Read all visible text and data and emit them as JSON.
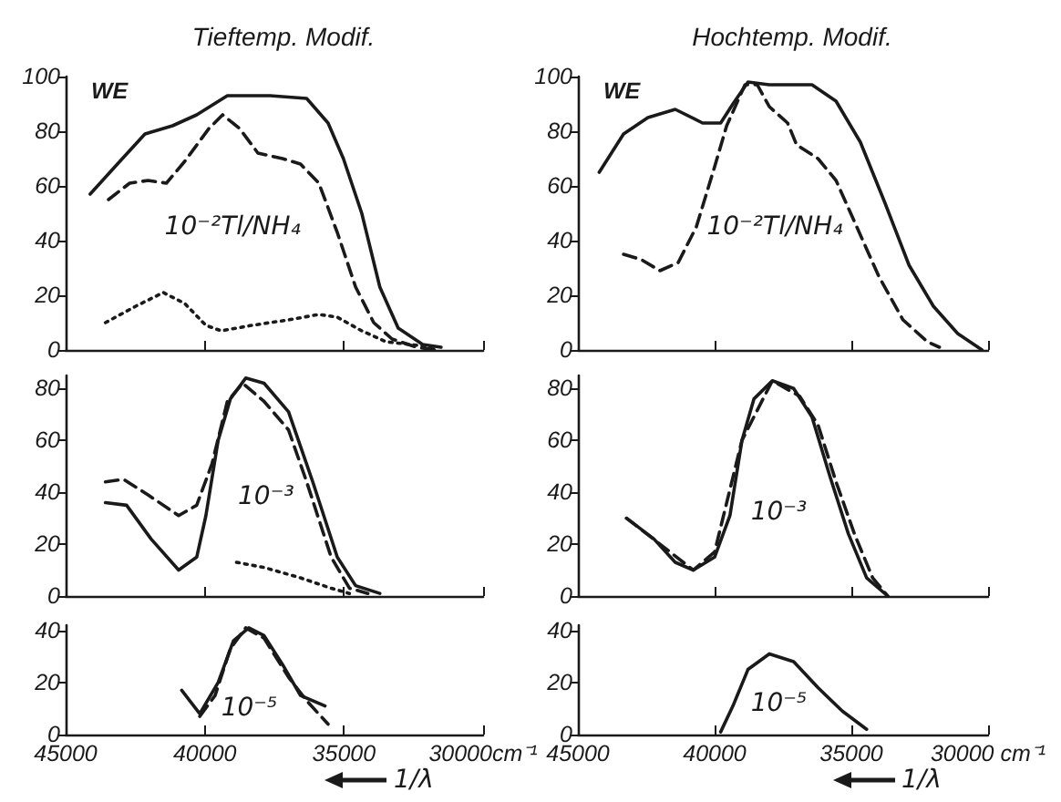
{
  "chart_data": [
    {
      "type": "line",
      "title": "Tieftemp. Modif.",
      "ylabel": "WE",
      "xlim": [
        45000,
        30000
      ],
      "xticks": [
        45000,
        40000,
        35000,
        30000
      ],
      "ylim": [
        0,
        100
      ],
      "yticks": [
        0,
        20,
        40,
        60,
        80,
        100
      ],
      "tick_labels": "y",
      "annotations": [
        "10⁻²Tl/NH₄"
      ],
      "series": [
        {
          "color": "#1a1a1a",
          "line_style": "solid",
          "x": [
            44120,
            43140,
            42150,
            41160,
            40290,
            39190,
            37650,
            36340,
            35570,
            35020,
            34360,
            33710,
            33050,
            32170,
            31510
          ],
          "values": [
            57,
            68,
            79,
            82,
            86,
            93,
            93,
            92,
            83,
            70,
            50,
            23,
            8,
            2,
            1
          ]
        },
        {
          "color": "#1a1a1a",
          "line_style": "dashed",
          "x": [
            43460,
            42700,
            42040,
            41380,
            40720,
            39850,
            39360,
            38750,
            38090,
            37210,
            36560,
            35900,
            35240,
            34580,
            33930,
            33270,
            32390,
            31730
          ],
          "values": [
            55,
            61,
            62,
            61,
            69,
            81,
            86,
            81,
            72,
            70,
            68,
            61,
            43,
            23,
            10,
            4,
            1,
            0
          ]
        },
        {
          "color": "#1a1a1a",
          "line_style": "dotted",
          "x": [
            43570,
            42480,
            41490,
            40720,
            39960,
            39410,
            38310,
            36990,
            35900,
            35240,
            34360,
            33490,
            32610,
            31730
          ],
          "values": [
            10,
            16,
            21,
            17,
            9,
            7,
            9,
            11,
            13,
            12,
            7,
            3,
            2,
            1
          ]
        }
      ]
    },
    {
      "type": "line",
      "title": "Hochtemp. Modif.",
      "ylabel": "WE",
      "xlim": [
        45000,
        30000
      ],
      "xticks": [
        45000,
        40000,
        35000,
        30000
      ],
      "ylim": [
        0,
        100
      ],
      "yticks": [
        0,
        20,
        40,
        60,
        80,
        100
      ],
      "tick_labels": "y",
      "annotations": [
        "10⁻²Tl/NH₄"
      ],
      "series": [
        {
          "color": "#1a1a1a",
          "line_style": "solid",
          "x": [
            44220,
            43330,
            42440,
            41440,
            40440,
            39780,
            39330,
            38780,
            38000,
            36440,
            35560,
            34670,
            33780,
            32890,
            32000,
            31110,
            30220
          ],
          "values": [
            65,
            79,
            85,
            88,
            83,
            83,
            90,
            98,
            97,
            97,
            91,
            76,
            54,
            31,
            16,
            6,
            0
          ]
        },
        {
          "color": "#1a1a1a",
          "line_style": "dashed",
          "x": [
            43330,
            42670,
            42000,
            41330,
            40670,
            40000,
            39560,
            38890,
            38440,
            38000,
            37330,
            37000,
            36220,
            35560,
            34890,
            34000,
            33110,
            32220,
            31780
          ],
          "values": [
            35,
            33,
            29,
            32,
            45,
            67,
            82,
            97,
            97,
            89,
            83,
            75,
            70,
            62,
            47,
            27,
            11,
            3,
            1
          ]
        }
      ]
    },
    {
      "type": "line",
      "xlim": [
        45000,
        30000
      ],
      "xticks": [
        45000,
        40000,
        35000,
        30000
      ],
      "ylim": [
        0,
        85
      ],
      "yticks": [
        0,
        20,
        40,
        60,
        80
      ],
      "tick_labels": "y",
      "annotations": [
        "10⁻³"
      ],
      "series": [
        {
          "color": "#1a1a1a",
          "line_style": "solid",
          "x": [
            43570,
            42810,
            41930,
            40940,
            40290,
            39960,
            39520,
            39080,
            38530,
            37870,
            36990,
            36120,
            35240,
            34580,
            33710
          ],
          "values": [
            36,
            35,
            22,
            10,
            15,
            31,
            60,
            76,
            84,
            82,
            71,
            44,
            15,
            4,
            1
          ]
        },
        {
          "color": "#1a1a1a",
          "line_style": "dashed",
          "x": [
            43570,
            42920,
            42040,
            40940,
            40290,
            39740,
            39190,
            38640,
            37870,
            36990,
            36340,
            35460,
            34800,
            34140
          ],
          "values": [
            44,
            45,
            39,
            31,
            35,
            51,
            75,
            82,
            75,
            64,
            44,
            15,
            3,
            1
          ]
        },
        {
          "color": "#1a1a1a",
          "line_style": "dotted",
          "x": [
            38860,
            37870,
            36560,
            35460,
            34800
          ],
          "values": [
            13,
            11,
            7,
            3,
            1
          ]
        }
      ]
    },
    {
      "type": "line",
      "xlim": [
        45000,
        30000
      ],
      "xticks": [
        45000,
        40000,
        35000,
        30000
      ],
      "ylim": [
        0,
        85
      ],
      "yticks": [
        0,
        20,
        40,
        60,
        80
      ],
      "tick_labels": "y",
      "annotations": [
        "10⁻³"
      ],
      "series": [
        {
          "color": "#1a1a1a",
          "line_style": "solid",
          "x": [
            43220,
            42220,
            41440,
            40780,
            40000,
            39440,
            39000,
            38560,
            37890,
            37110,
            36440,
            35780,
            35110,
            34440,
            33670
          ],
          "values": [
            30,
            22,
            13,
            10,
            15,
            31,
            60,
            76,
            83,
            80,
            69,
            46,
            24,
            7,
            0
          ]
        },
        {
          "color": "#1a1a1a",
          "line_style": "dashed",
          "x": [
            43220,
            40780,
            40000,
            39000,
            37890,
            36890,
            36220,
            35560,
            34890,
            34220,
            33670
          ],
          "values": [
            30,
            10,
            17,
            60,
            83,
            77,
            66,
            44,
            24,
            7,
            0
          ]
        }
      ]
    },
    {
      "type": "line",
      "xlabel": "1/λ",
      "xlim": [
        45000,
        30000
      ],
      "xticks": [
        45000,
        40000,
        35000,
        {
          "value": 30000,
          "label": "30000cm⁻¹"
        }
      ],
      "ylim": [
        0,
        42
      ],
      "yticks": [
        0,
        20,
        40
      ],
      "annotations": [
        "10⁻⁵"
      ],
      "series": [
        {
          "color": "#1a1a1a",
          "line_style": "solid",
          "x": [
            40830,
            40180,
            39520,
            38970,
            38420,
            37870,
            37210,
            36560,
            35680
          ],
          "values": [
            17,
            8,
            20,
            36,
            41,
            38,
            27,
            15,
            11
          ]
        },
        {
          "color": "#1a1a1a",
          "line_style": "dashed",
          "x": [
            40180,
            39630,
            39080,
            38530,
            37870,
            36990,
            36340,
            35570
          ],
          "values": [
            7,
            15,
            33,
            41,
            37,
            22,
            13,
            4
          ]
        }
      ]
    },
    {
      "type": "line",
      "xlabel": "1/λ",
      "xlim": [
        45000,
        30000
      ],
      "xticks": [
        45000,
        40000,
        35000,
        {
          "value": 30000,
          "label": "30000 cm⁻¹"
        }
      ],
      "ylim": [
        0,
        42
      ],
      "yticks": [
        0,
        20,
        40
      ],
      "annotations": [
        "10⁻⁵"
      ],
      "series": [
        {
          "color": "#1a1a1a",
          "line_style": "solid",
          "x": [
            39780,
            39330,
            38780,
            38000,
            37110,
            36220,
            35330,
            34440
          ],
          "values": [
            1,
            11,
            25,
            31,
            28,
            18,
            9,
            2
          ]
        }
      ]
    }
  ]
}
